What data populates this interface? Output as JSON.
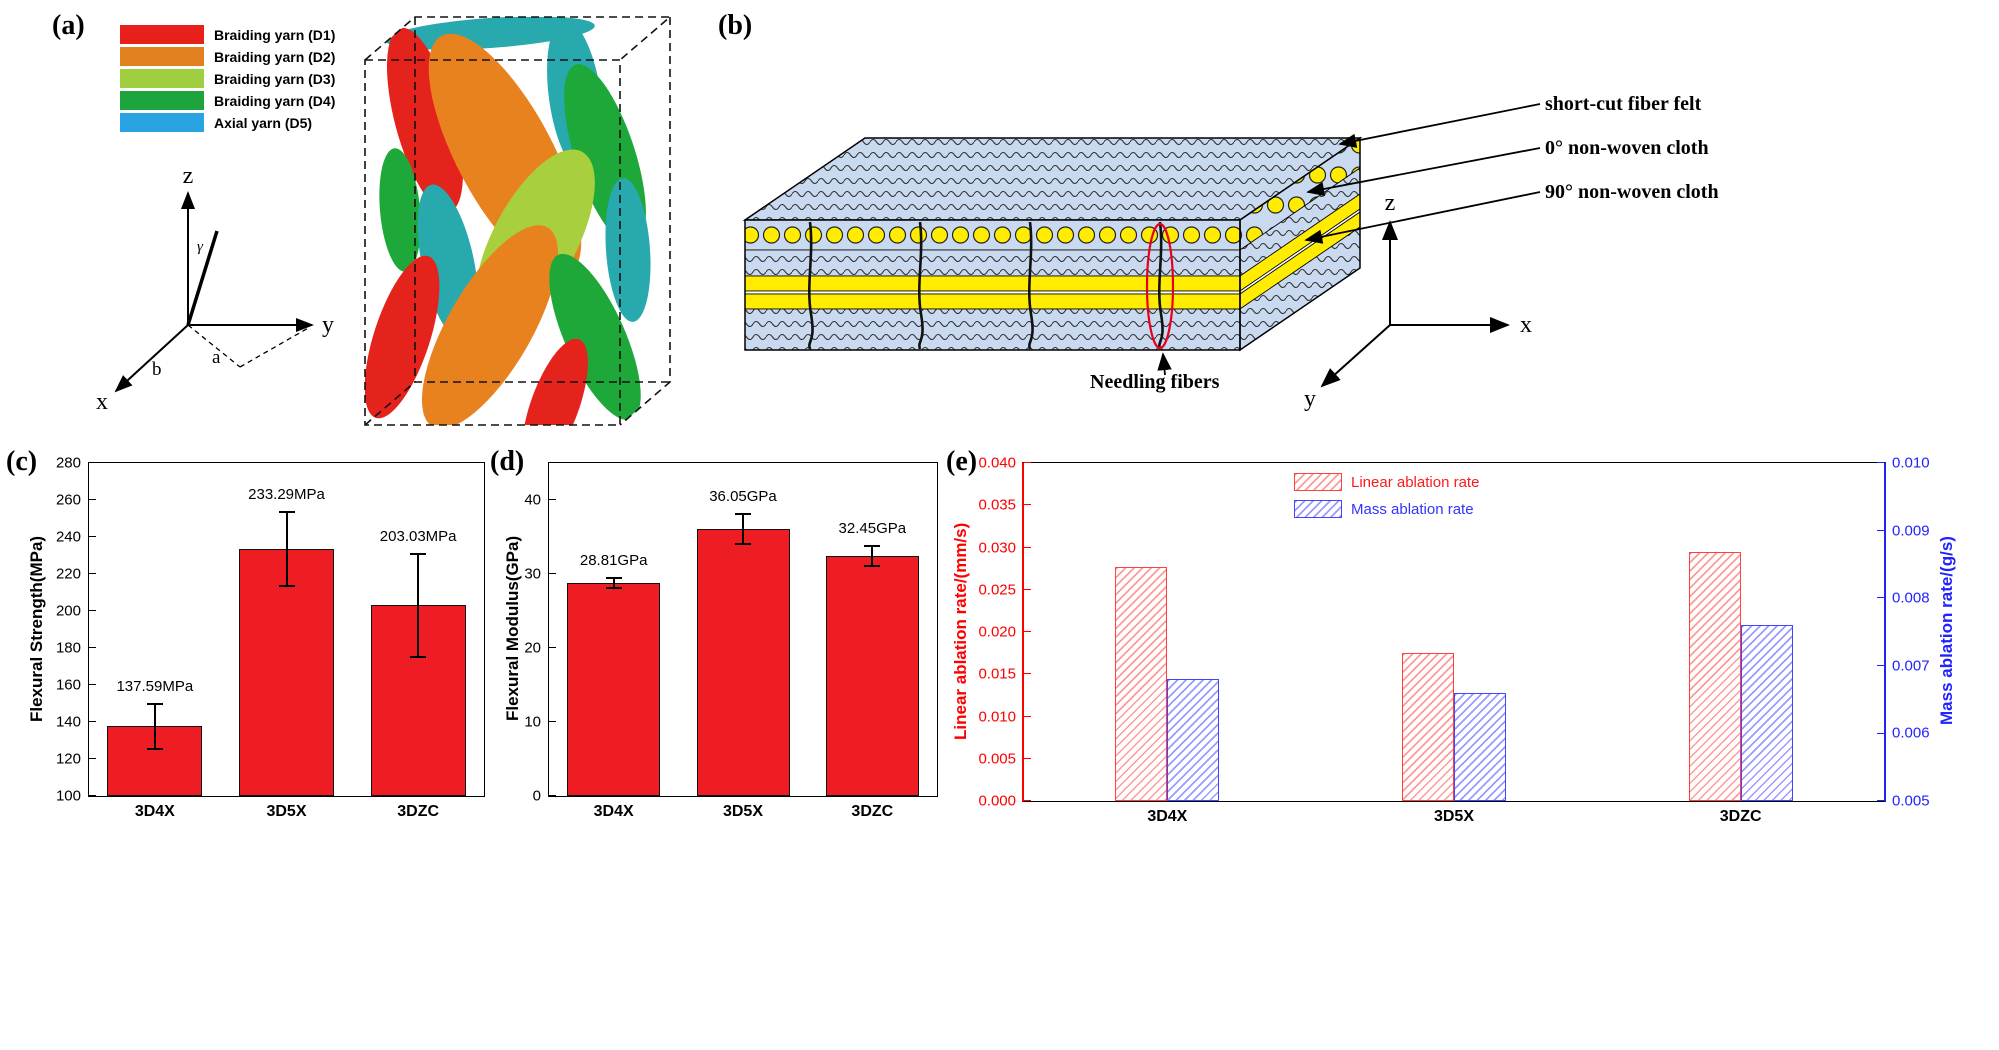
{
  "panels": {
    "a": {
      "letter": "(a)"
    },
    "b": {
      "letter": "(b)"
    },
    "c": {
      "letter": "(c)"
    },
    "d": {
      "letter": "(d)"
    },
    "e": {
      "letter": "(e)"
    }
  },
  "panel_a": {
    "legend": [
      {
        "label": "Braiding yarn (D1)",
        "color": "#e8201c"
      },
      {
        "label": "Braiding yarn (D2)",
        "color": "#e2811f"
      },
      {
        "label": "Braiding yarn (D3)",
        "color": "#9fce3e"
      },
      {
        "label": "Braiding yarn (D4)",
        "color": "#1ea43c"
      },
      {
        "label": "Axial yarn (D5)",
        "color": "#29a3e2"
      }
    ],
    "axis_labels": {
      "z": "z",
      "y": "y",
      "x": "x",
      "gamma": "γ",
      "a": "a",
      "b": "b"
    }
  },
  "panel_b": {
    "labels": {
      "felt": "short-cut fiber felt",
      "cloth0": "0° non-woven cloth",
      "cloth90": "90° non-woven cloth",
      "needling": "Needling fibers"
    },
    "axis_labels": {
      "z": "z",
      "x": "x",
      "y": "y"
    }
  },
  "chart_data": [
    {
      "id": "c",
      "type": "bar",
      "ylabel": "Flexural Strength(MPa)",
      "categories": [
        "3D4X",
        "3D5X",
        "3DZC"
      ],
      "values": [
        137.59,
        233.29,
        203.03
      ],
      "errors": [
        12,
        20,
        28
      ],
      "bar_labels": [
        "137.59MPa",
        "233.29MPa",
        "203.03MPa"
      ],
      "ylim": [
        100,
        280
      ],
      "ytick_step": 20,
      "ydecimals": 0,
      "bar_color": "#ee1c23",
      "grid": false,
      "legend_position": "none"
    },
    {
      "id": "d",
      "type": "bar",
      "ylabel": "Flexural Modulus(GPa)",
      "categories": [
        "3D4X",
        "3D5X",
        "3DZC"
      ],
      "values": [
        28.81,
        36.05,
        32.45
      ],
      "errors": [
        0.7,
        2.0,
        1.4
      ],
      "bar_labels": [
        "28.81GPa",
        "36.05GPa",
        "32.45GPa"
      ],
      "ylim": [
        0,
        45
      ],
      "yticks": [
        0,
        10,
        20,
        30,
        40
      ],
      "ydecimals": 0,
      "bar_color": "#ee1c23",
      "grid": false,
      "legend_position": "none"
    },
    {
      "id": "e",
      "type": "bar",
      "dual_axis": true,
      "categories": [
        "3D4X",
        "3D5X",
        "3DZC"
      ],
      "series": [
        {
          "name": "Linear ablation rate",
          "axis": "left",
          "color": "#ff1a1a",
          "values": [
            0.0277,
            0.0175,
            0.0295
          ]
        },
        {
          "name": "Mass ablation rate",
          "axis": "right",
          "color": "#3333ff",
          "values": [
            0.0068,
            0.0066,
            0.0076
          ]
        }
      ],
      "left_axis": {
        "label": "Linear ablation rate/(mm/s)",
        "lim": [
          0,
          0.04
        ],
        "step": 0.005,
        "decimals": 3,
        "color": "#ff0000"
      },
      "right_axis": {
        "label": "Mass ablation rate/(g/s)",
        "lim": [
          0.005,
          0.01
        ],
        "step": 0.001,
        "decimals": 3,
        "color": "#2222ff"
      },
      "grid": false,
      "legend_position": "top-right"
    }
  ]
}
